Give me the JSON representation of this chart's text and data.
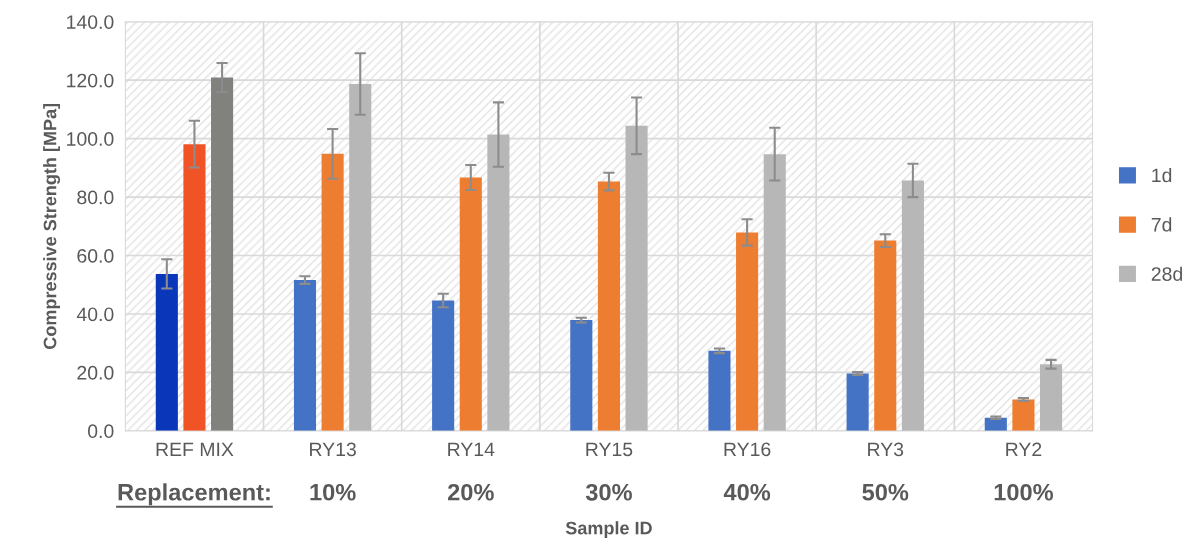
{
  "chart_data": {
    "type": "bar",
    "xlabel": "Sample ID",
    "ylabel": "Compressive Strength [MPa]",
    "categories": [
      "REF MIX",
      "RY13",
      "RY14",
      "RY15",
      "RY16",
      "RY3",
      "RY2"
    ],
    "series": [
      {
        "name": "1d",
        "color": "#4472c4",
        "colors": [
          "#0a37b9",
          "#4472c4",
          "#4472c4",
          "#4472c4",
          "#4472c4",
          "#4472c4",
          "#4472c4"
        ],
        "values": [
          53.7,
          51.6,
          44.6,
          37.9,
          27.4,
          19.6,
          4.5
        ],
        "errors": [
          5.0,
          1.3,
          2.3,
          0.8,
          0.8,
          0.5,
          0.4
        ]
      },
      {
        "name": "7d",
        "color": "#ed7d31",
        "colors": [
          "#f05426",
          "#ed7d31",
          "#ed7d31",
          "#ed7d31",
          "#ed7d31",
          "#ed7d31",
          "#ed7d31"
        ],
        "values": [
          98.1,
          94.8,
          86.7,
          85.3,
          67.9,
          65.1,
          10.7
        ],
        "errors": [
          8.0,
          8.5,
          4.3,
          3.0,
          4.5,
          2.2,
          0.5
        ]
      },
      {
        "name": "28d",
        "color": "#b7b7b7",
        "colors": [
          "#81827e",
          "#b7b7b7",
          "#b7b7b7",
          "#b7b7b7",
          "#b7b7b7",
          "#b7b7b7",
          "#b7b7b7"
        ],
        "values": [
          120.9,
          118.7,
          101.4,
          104.4,
          94.7,
          85.7,
          22.8
        ],
        "errors": [
          5.0,
          10.5,
          11.0,
          9.7,
          9.0,
          5.7,
          1.5
        ]
      }
    ],
    "ylim": [
      0,
      140
    ],
    "yticks": [
      {
        "value": 0,
        "label": "0.0"
      },
      {
        "value": 20,
        "label": "20.0"
      },
      {
        "value": 40,
        "label": "40.0"
      },
      {
        "value": 60,
        "label": "60.0"
      },
      {
        "value": 80,
        "label": "80.0"
      },
      {
        "value": 100,
        "label": "100.0"
      },
      {
        "value": 120,
        "label": "120.0"
      },
      {
        "value": 140,
        "label": "140.0"
      }
    ],
    "annotations": [
      "Replacement:",
      "10%",
      "20%",
      "30%",
      "40%",
      "50%",
      "100%"
    ],
    "grid": "y",
    "legend": "right"
  }
}
